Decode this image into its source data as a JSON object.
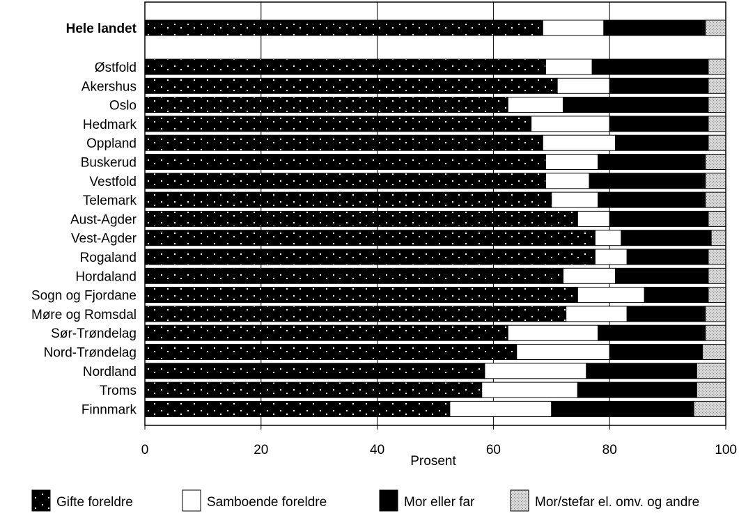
{
  "chart_data": {
    "type": "bar",
    "stacked": true,
    "orientation": "horizontal",
    "xlabel": "Prosent",
    "xlim": [
      0,
      100
    ],
    "xticks": [
      0,
      20,
      40,
      60,
      80,
      100
    ],
    "grid": true,
    "legend_position": "bottom",
    "categories": [
      "Hele landet",
      "Østfold",
      "Akershus",
      "Oslo",
      "Hedmark",
      "Oppland",
      "Buskerud",
      "Vestfold",
      "Telemark",
      "Aust-Agder",
      "Vest-Agder",
      "Rogaland",
      "Hordaland",
      "Sogn og Fjordane",
      "Møre og Romsdal",
      "Sør-Trøndelag",
      "Nord-Trøndelag",
      "Nordland",
      "Troms",
      "Finnmark"
    ],
    "emphasized_category": "Hele landet",
    "series": [
      {
        "name": "Gifte foreldre",
        "fill": "#000000",
        "pattern": "dots",
        "values": [
          68.5,
          69,
          71,
          62.5,
          66.5,
          68.5,
          69,
          69,
          70,
          74.5,
          77.5,
          77.5,
          72,
          74.5,
          72.5,
          62.5,
          64,
          58.5,
          58,
          52.5
        ]
      },
      {
        "name": "Samboende foreldre",
        "fill": "#ffffff",
        "pattern": "none",
        "values": [
          10.5,
          8,
          9,
          9.5,
          13.5,
          12.5,
          9,
          7.5,
          8,
          5.5,
          4.5,
          5.5,
          9,
          11.5,
          10.5,
          15.5,
          16,
          17.5,
          16.5,
          17.5
        ]
      },
      {
        "name": "Mor eller far",
        "fill": "#000000",
        "pattern": "none",
        "values": [
          17.5,
          20,
          17,
          25,
          17,
          16,
          18.5,
          20,
          18.5,
          17,
          15.5,
          14,
          16,
          11,
          13.5,
          18.5,
          16,
          19,
          20.5,
          24.5
        ]
      },
      {
        "name": "Mor/stefar el. omv. og andre",
        "fill": "#cfcfcf",
        "pattern": "stipple",
        "values": [
          3.5,
          3,
          3,
          3,
          3,
          3,
          3.5,
          3.5,
          3.5,
          3,
          2.5,
          3,
          3,
          3,
          3.5,
          3.5,
          4,
          5,
          5,
          5.5
        ]
      }
    ]
  }
}
